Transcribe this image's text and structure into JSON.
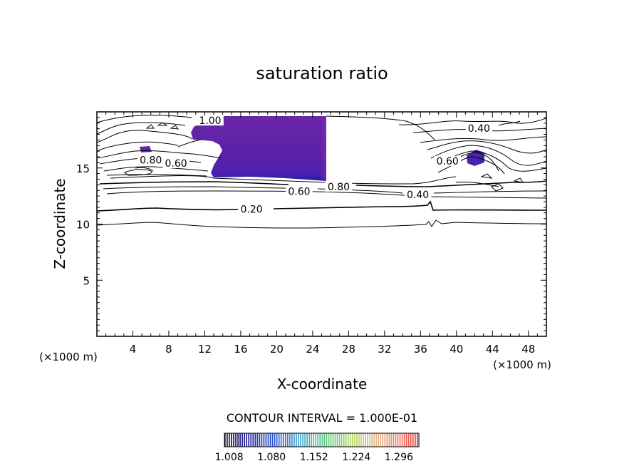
{
  "chart_data": {
    "type": "contour",
    "title": "saturation ratio",
    "xlabel": "X-coordinate",
    "ylabel": "Z-coordinate",
    "x_units": "(×1000 m)",
    "y_units": "(×1000 m)",
    "xlim": [
      0,
      50
    ],
    "ylim": [
      0,
      20
    ],
    "x_ticks": [
      4,
      8,
      12,
      16,
      20,
      24,
      28,
      32,
      36,
      40,
      44,
      48
    ],
    "y_ticks": [
      5,
      10,
      15
    ],
    "contour_interval_label": "CONTOUR INTERVAL = 1.000E-01",
    "contour_labels": [
      {
        "text": "1.00",
        "x": 12.6,
        "z": 19.1
      },
      {
        "text": "0.80",
        "x": 6.0,
        "z": 15.6
      },
      {
        "text": "0.60",
        "x": 8.8,
        "z": 15.3
      },
      {
        "text": "0.40",
        "x": 42.5,
        "z": 18.4
      },
      {
        "text": "0.80",
        "x": 26.9,
        "z": 13.2
      },
      {
        "text": "0.60",
        "x": 22.5,
        "z": 12.8
      },
      {
        "text": "0.40",
        "x": 35.7,
        "z": 12.5
      },
      {
        "text": "0.20",
        "x": 17.2,
        "z": 11.2
      },
      {
        "text": "0.60",
        "x": 39.0,
        "z": 15.5
      }
    ],
    "filled_region_min": 1.0,
    "colorbar": {
      "ticks": [
        "1.008",
        "1.080",
        "1.152",
        "1.224",
        "1.296"
      ],
      "range": [
        1.0,
        1.33
      ]
    }
  }
}
